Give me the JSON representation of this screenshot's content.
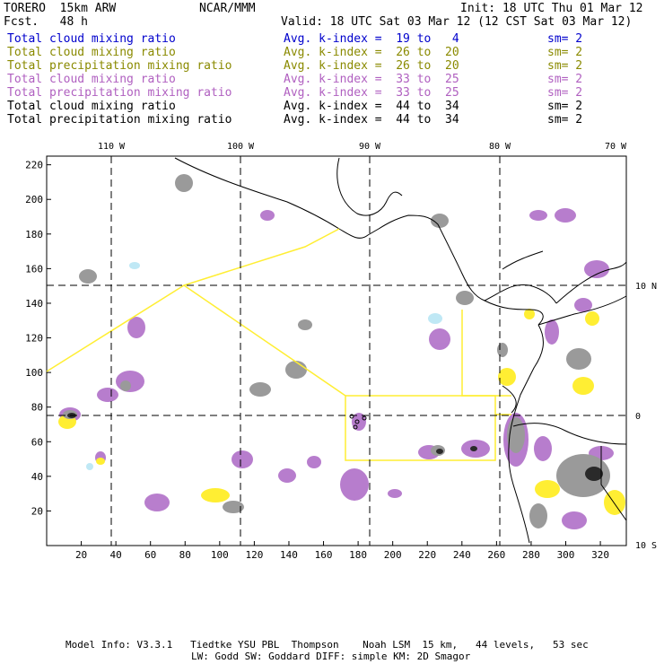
{
  "header": {
    "model": "TORERO  15km ARW",
    "org": "NCAR/MMM",
    "init": "Init: 18 UTC Thu 01 Mar 12",
    "fcst": "Fcst.   48 h",
    "valid": "Valid: 18 UTC Sat 03 Mar 12 (12 CST Sat 03 Mar 12)"
  },
  "legend": [
    {
      "field": "Total cloud mixing ratio",
      "kindex": "Avg. k-index =  19 to   4",
      "sm": "sm= 2",
      "color": "#0000cc"
    },
    {
      "field": "Total cloud mixing ratio",
      "kindex": "Avg. k-index =  26 to  20",
      "sm": "sm= 2",
      "color": "#8a8a00"
    },
    {
      "field": "Total precipitation mixing ratio",
      "kindex": "Avg. k-index =  26 to  20",
      "sm": "sm= 2",
      "color": "#8a8a00"
    },
    {
      "field": "Total cloud mixing ratio",
      "kindex": "Avg. k-index =  33 to  25",
      "sm": "sm= 2",
      "color": "#b060c0"
    },
    {
      "field": "Total precipitation mixing ratio",
      "kindex": "Avg. k-index =  33 to  25",
      "sm": "sm= 2",
      "color": "#b060c0"
    },
    {
      "field": "Total cloud mixing ratio",
      "kindex": "Avg. k-index =  44 to  34",
      "sm": "sm= 2",
      "color": "#000000"
    },
    {
      "field": "Total precipitation mixing ratio",
      "kindex": "Avg. k-index =  44 to  34",
      "sm": "sm= 2",
      "color": "#000000"
    }
  ],
  "map": {
    "lon_labels": [
      "110 W",
      "100 W",
      "90 W",
      "80 W",
      "70 W"
    ],
    "lat_labels": [
      "10 N",
      "0",
      "10 S"
    ],
    "x_ticks": [
      "20",
      "40",
      "60",
      "80",
      "100",
      "120",
      "140",
      "160",
      "180",
      "200",
      "220",
      "240",
      "260",
      "280",
      "300",
      "320"
    ],
    "y_ticks": [
      "20",
      "40",
      "60",
      "80",
      "100",
      "120",
      "140",
      "160",
      "180",
      "200",
      "220"
    ],
    "grid_x_range": [
      0,
      335
    ],
    "grid_y_range": [
      0,
      225
    ]
  },
  "footer": {
    "line1": "Model Info: V3.3.1   Tiedtke YSU PBL  Thompson    Noah LSM  15 km,   44 levels,   53 sec",
    "line2": "LW: Godd SW: Goddard DIFF: simple KM: 2D Smagor"
  },
  "colors": {
    "blue": "#0000cc",
    "olive": "#8a8a00",
    "magenta": "#b060c0",
    "yellow_box": "#ffee33"
  }
}
